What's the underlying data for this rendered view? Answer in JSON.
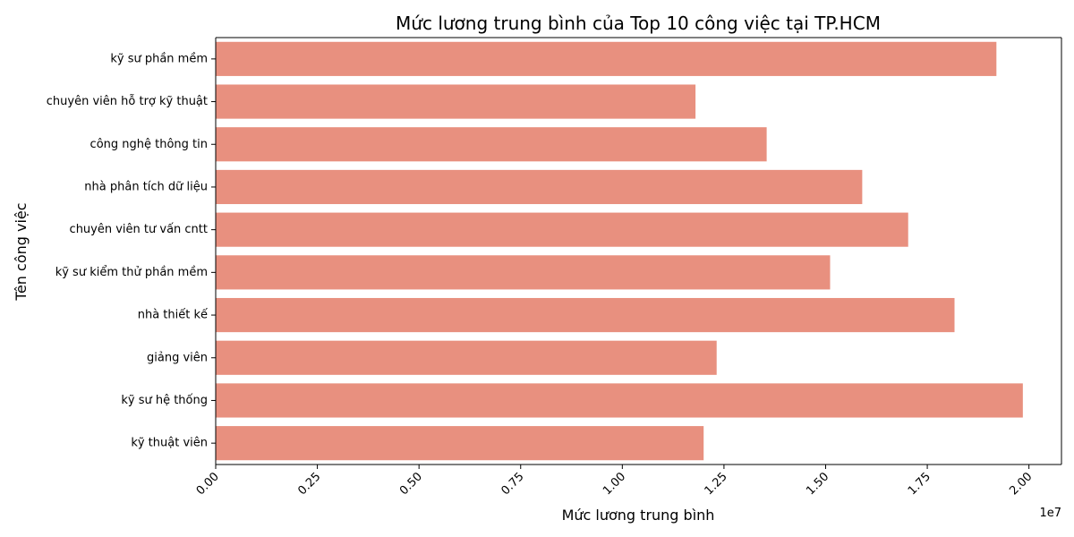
{
  "chart_data": {
    "type": "bar",
    "orientation": "horizontal",
    "title": "Mức lương trung bình của Top 10 công việc tại TP.HCM",
    "xlabel": "Mức lương trung bình",
    "ylabel": "Tên công việc",
    "x_offset_label": "1e7",
    "xlim": [
      0,
      20800000
    ],
    "xticks": [
      0,
      2500000,
      5000000,
      7500000,
      10000000,
      12500000,
      15000000,
      17500000,
      20000000
    ],
    "xtick_labels": [
      "0.00",
      "0.25",
      "0.50",
      "0.75",
      "1.00",
      "1.25",
      "1.50",
      "1.75",
      "2.00"
    ],
    "categories": [
      "kỹ sư phần mềm",
      "chuyên viên hỗ trợ kỹ thuật",
      "công nghệ thông tin",
      "nhà phân tích dữ liệu",
      "chuyên viên tư vấn cntt",
      "kỹ sư kiểm thử phần mềm",
      "nhà thiết kế",
      "giảng viên",
      "kỹ sư hệ thống",
      "kỹ thuật viên"
    ],
    "values": [
      19200000,
      11800000,
      13550000,
      15900000,
      17030000,
      15110000,
      18170000,
      12320000,
      19850000,
      12000000
    ],
    "bar_color": "#e8907f",
    "grid": false,
    "legend": false
  }
}
